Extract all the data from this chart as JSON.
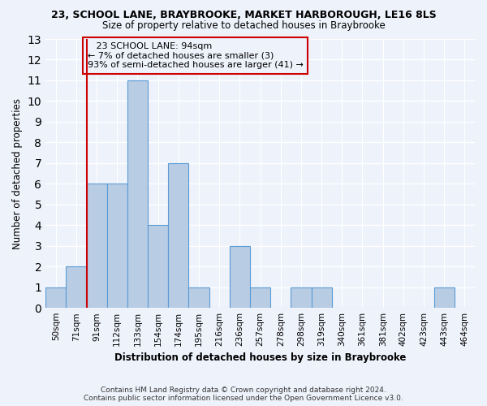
{
  "title1": "23, SCHOOL LANE, BRAYBROOKE, MARKET HARBOROUGH, LE16 8LS",
  "title2": "Size of property relative to detached houses in Braybrooke",
  "xlabel": "Distribution of detached houses by size in Braybrooke",
  "ylabel": "Number of detached properties",
  "categories": [
    "50sqm",
    "71sqm",
    "91sqm",
    "112sqm",
    "133sqm",
    "154sqm",
    "174sqm",
    "195sqm",
    "216sqm",
    "236sqm",
    "257sqm",
    "278sqm",
    "298sqm",
    "319sqm",
    "340sqm",
    "361sqm",
    "381sqm",
    "402sqm",
    "423sqm",
    "443sqm",
    "464sqm"
  ],
  "values": [
    1,
    2,
    6,
    6,
    11,
    4,
    7,
    1,
    0,
    3,
    1,
    0,
    1,
    1,
    0,
    0,
    0,
    0,
    0,
    1,
    0
  ],
  "bar_color": "#b8cce4",
  "bar_edge_color": "#5b9bd5",
  "vline_index": 2,
  "annotation_line1": "   23 SCHOOL LANE: 94sqm",
  "annotation_line2": "← 7% of detached houses are smaller (3)",
  "annotation_line3": "93% of semi-detached houses are larger (41) →",
  "vline_color": "#cc0000",
  "box_color": "#cc0000",
  "ylim": [
    0,
    13
  ],
  "yticks": [
    0,
    1,
    2,
    3,
    4,
    5,
    6,
    7,
    8,
    9,
    10,
    11,
    12,
    13
  ],
  "footer1": "Contains HM Land Registry data © Crown copyright and database right 2024.",
  "footer2": "Contains public sector information licensed under the Open Government Licence v3.0.",
  "bg_color": "#eef2fb",
  "grid_color": "#ffffff"
}
